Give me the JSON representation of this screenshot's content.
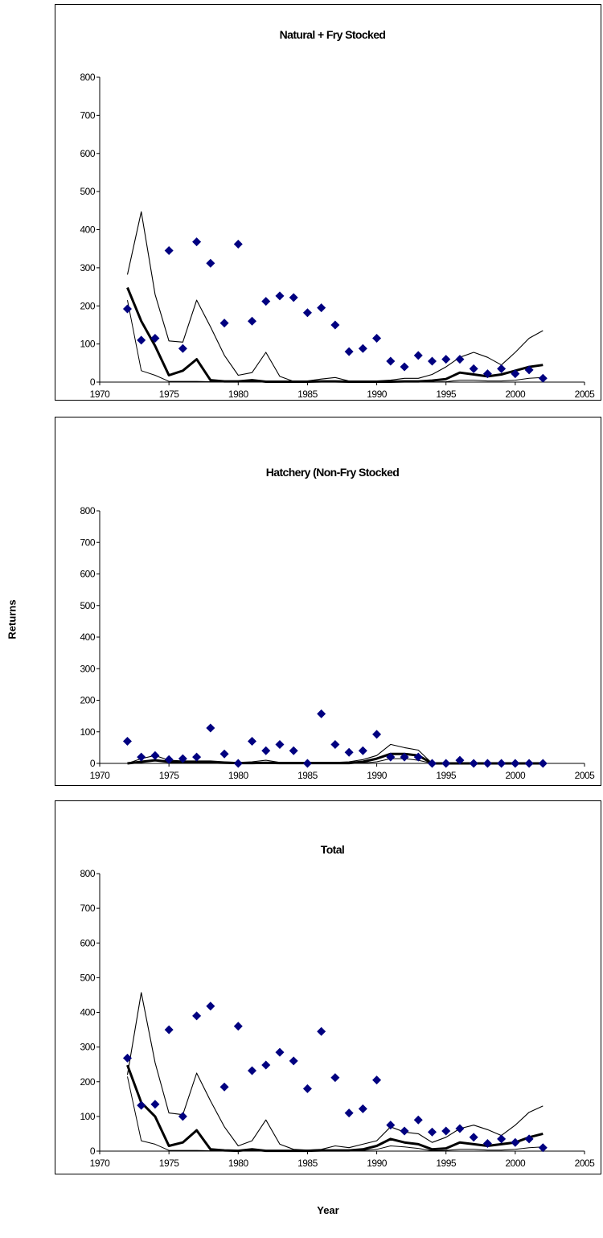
{
  "axes": {
    "ylabel": "Returns",
    "xlabel": "Year"
  },
  "colors": {
    "points": "#000080",
    "lines": "#000000"
  },
  "chart_data": [
    {
      "type": "line",
      "title": "Natural + Fry Stocked",
      "xlim": [
        1970,
        2005
      ],
      "ylim": [
        0,
        800
      ],
      "xticks": [
        "1970",
        "1975",
        "1980",
        "1985",
        "1990",
        "1995",
        "2000",
        "2005"
      ],
      "yticks": [
        "0",
        "100",
        "200",
        "300",
        "400",
        "500",
        "600",
        "700",
        "800"
      ],
      "years": [
        1972,
        1973,
        1974,
        1975,
        1976,
        1977,
        1978,
        1979,
        1980,
        1981,
        1982,
        1983,
        1984,
        1985,
        1986,
        1987,
        1988,
        1989,
        1990,
        1991,
        1992,
        1993,
        1994,
        1995,
        1996,
        1997,
        1998,
        1999,
        2000,
        2001,
        2002
      ],
      "observed": [
        192,
        110,
        115,
        345,
        88,
        368,
        312,
        155,
        362,
        160,
        212,
        226,
        222,
        182,
        195,
        150,
        80,
        88,
        115,
        55,
        40,
        70,
        55,
        60,
        60,
        35,
        22,
        35,
        22,
        32,
        10
      ],
      "median": [
        248,
        160,
        95,
        18,
        30,
        60,
        5,
        2,
        2,
        5,
        1,
        1,
        1,
        1,
        2,
        2,
        1,
        1,
        1,
        1,
        2,
        2,
        4,
        8,
        25,
        20,
        15,
        20,
        30,
        40,
        45
      ],
      "upper": [
        282,
        447,
        230,
        108,
        105,
        215,
        145,
        70,
        18,
        25,
        78,
        15,
        2,
        3,
        8,
        12,
        3,
        3,
        3,
        5,
        10,
        10,
        20,
        40,
        65,
        78,
        65,
        45,
        78,
        115,
        135
      ],
      "lower": [
        215,
        30,
        18,
        2,
        2,
        2,
        1,
        1,
        1,
        1,
        0,
        0,
        0,
        0,
        0,
        0,
        0,
        0,
        0,
        0,
        0,
        0,
        0,
        1,
        5,
        5,
        3,
        3,
        5,
        10,
        12
      ]
    },
    {
      "type": "line",
      "title": "Hatchery (Non-Fry Stocked",
      "xlim": [
        1970,
        2005
      ],
      "ylim": [
        0,
        800
      ],
      "xticks": [
        "1970",
        "1975",
        "1980",
        "1985",
        "1990",
        "1995",
        "2000",
        "2005"
      ],
      "yticks": [
        "0",
        "100",
        "200",
        "300",
        "400",
        "500",
        "600",
        "700",
        "800"
      ],
      "years": [
        1972,
        1973,
        1974,
        1975,
        1976,
        1977,
        1978,
        1979,
        1980,
        1981,
        1982,
        1983,
        1984,
        1985,
        1986,
        1987,
        1988,
        1989,
        1990,
        1991,
        1992,
        1993,
        1994,
        1995,
        1996,
        1997,
        1998,
        1999,
        2000,
        2001,
        2002
      ],
      "observed": [
        70,
        20,
        25,
        12,
        15,
        20,
        112,
        30,
        0,
        70,
        40,
        60,
        40,
        0,
        157,
        60,
        35,
        40,
        92,
        20,
        20,
        20,
        0,
        0,
        10,
        0,
        0,
        0,
        0,
        0,
        0
      ],
      "median": [
        0,
        5,
        10,
        5,
        3,
        3,
        3,
        2,
        1,
        1,
        2,
        1,
        1,
        1,
        1,
        1,
        1,
        5,
        15,
        30,
        30,
        25,
        0,
        0,
        0,
        0,
        0,
        0,
        0,
        0,
        0
      ],
      "upper": [
        0,
        15,
        25,
        10,
        8,
        8,
        8,
        5,
        3,
        5,
        10,
        3,
        3,
        3,
        3,
        3,
        5,
        12,
        25,
        60,
        50,
        42,
        0,
        0,
        0,
        0,
        0,
        0,
        0,
        0,
        0
      ],
      "lower": [
        0,
        0,
        0,
        0,
        0,
        0,
        0,
        0,
        0,
        0,
        0,
        0,
        0,
        0,
        0,
        0,
        0,
        1,
        5,
        15,
        15,
        10,
        0,
        0,
        0,
        0,
        0,
        0,
        0,
        0,
        0
      ]
    },
    {
      "type": "line",
      "title": "Total",
      "xlim": [
        1970,
        2005
      ],
      "ylim": [
        0,
        800
      ],
      "xticks": [
        "1970",
        "1975",
        "1980",
        "1985",
        "1990",
        "1995",
        "2000",
        "2005"
      ],
      "yticks": [
        "0",
        "100",
        "200",
        "300",
        "400",
        "500",
        "600",
        "700",
        "800"
      ],
      "years": [
        1972,
        1973,
        1974,
        1975,
        1976,
        1977,
        1978,
        1979,
        1980,
        1981,
        1982,
        1983,
        1984,
        1985,
        1986,
        1987,
        1988,
        1989,
        1990,
        1991,
        1992,
        1993,
        1994,
        1995,
        1996,
        1997,
        1998,
        1999,
        2000,
        2001,
        2002
      ],
      "observed": [
        268,
        132,
        135,
        350,
        100,
        390,
        418,
        185,
        360,
        232,
        248,
        285,
        260,
        180,
        345,
        212,
        110,
        122,
        205,
        75,
        58,
        90,
        55,
        58,
        65,
        40,
        22,
        35,
        25,
        35,
        10
      ],
      "median": [
        248,
        140,
        100,
        15,
        25,
        60,
        5,
        2,
        1,
        5,
        1,
        1,
        1,
        1,
        2,
        2,
        2,
        5,
        15,
        35,
        25,
        20,
        5,
        8,
        25,
        20,
        15,
        20,
        25,
        40,
        50
      ],
      "upper": [
        220,
        457,
        255,
        110,
        105,
        225,
        145,
        70,
        15,
        30,
        90,
        20,
        5,
        3,
        5,
        15,
        10,
        20,
        30,
        70,
        55,
        50,
        25,
        40,
        65,
        75,
        62,
        45,
        75,
        112,
        130
      ],
      "lower": [
        215,
        30,
        20,
        2,
        2,
        2,
        1,
        1,
        1,
        1,
        0,
        0,
        0,
        0,
        0,
        0,
        0,
        2,
        5,
        15,
        12,
        8,
        1,
        2,
        5,
        5,
        3,
        3,
        5,
        10,
        12
      ]
    }
  ]
}
